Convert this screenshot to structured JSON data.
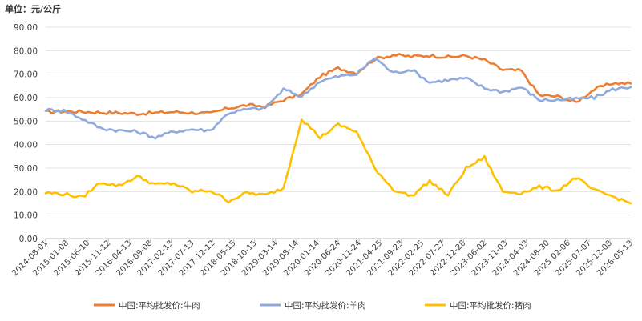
{
  "chart_data": {
    "type": "line",
    "unit_label": "单位：元/公斤",
    "ylim": [
      0,
      90
    ],
    "yticks": [
      "0.00",
      "10.00",
      "20.00",
      "30.00",
      "40.00",
      "50.00",
      "60.00",
      "70.00",
      "80.00",
      "90.00"
    ],
    "xticks": [
      "2014-08-01",
      "2015-01-08",
      "2015-06-10",
      "2015-11-12",
      "2016-04-13",
      "2016-09-08",
      "2017-02-13",
      "2017-07-13",
      "2017-12-12",
      "2018-05-15",
      "2018-10-15",
      "2019-03-14",
      "2019-08-14",
      "2020-01-14",
      "2020-06-24",
      "2020-11-24",
      "2021-04-25",
      "2021-09-23",
      "2022-02-25",
      "2022-07-27",
      "2022-12-28",
      "2023-06-02",
      "2023-11-03",
      "2024-04-03",
      "2024-08-30",
      "2025-02-06",
      "2025-07-07",
      "2025-12-08",
      "2026-05-13"
    ],
    "grid": true,
    "legend_position": "bottom",
    "series": [
      {
        "name": "中国:平均批发价:牛肉",
        "color": "#ED7D31",
        "values": [
          53.8,
          54.2,
          54.0,
          53.7,
          53.5,
          53.2,
          53.5,
          53.9,
          53.6,
          53.2,
          55.5,
          56.8,
          56.2,
          59.0,
          61.5,
          69.0,
          72.5,
          70.5,
          76.5,
          78.2,
          77.5,
          78.0,
          77.3,
          77.8,
          76.0,
          71.8,
          71.5,
          61.0,
          60.5,
          58.0,
          63.5,
          66.2,
          66.0
        ]
      },
      {
        "name": "中国:平均批发价:羊肉",
        "color": "#8FAADC",
        "values": [
          54.8,
          54.5,
          51.0,
          47.0,
          46.0,
          45.5,
          43.0,
          45.5,
          46.5,
          46.0,
          53.5,
          55.0,
          55.5,
          63.5,
          60.5,
          67.0,
          69.0,
          70.0,
          77.0,
          70.5,
          72.0,
          66.5,
          67.5,
          68.2,
          64.0,
          62.5,
          64.5,
          59.0,
          59.0,
          59.5,
          60.0,
          63.5,
          64.5
        ]
      },
      {
        "name": "中国:平均批发价:猪肉",
        "color": "#FFC000",
        "values": [
          19.5,
          19.0,
          17.5,
          24.0,
          22.5,
          26.5,
          23.0,
          23.5,
          20.0,
          20.5,
          16.0,
          19.5,
          18.5,
          21.5,
          51.0,
          43.0,
          48.5,
          45.5,
          30.0,
          21.0,
          18.0,
          24.5,
          18.5,
          30.0,
          34.5,
          20.0,
          19.5,
          22.0,
          20.5,
          26.0,
          20.5,
          18.0,
          15.0
        ]
      }
    ]
  }
}
